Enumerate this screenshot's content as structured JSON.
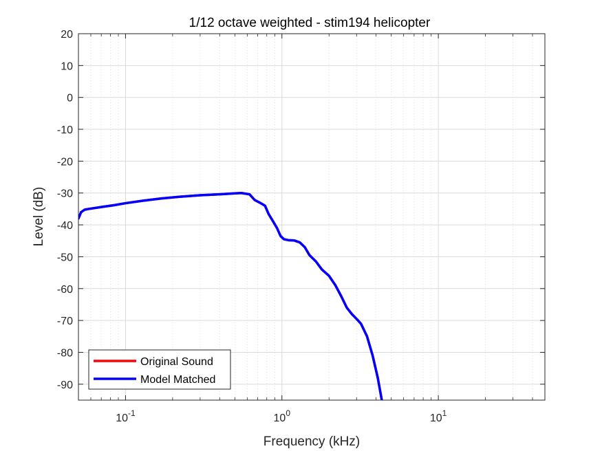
{
  "chart_data": {
    "type": "line",
    "title": "1/12 octave weighted - stim194 helicopter",
    "xlabel": "Frequency (kHz)",
    "ylabel": "Level (dB)",
    "xscale": "log",
    "xlim": [
      0.05,
      48
    ],
    "ylim": [
      -95,
      20
    ],
    "yticks": [
      20,
      10,
      0,
      -10,
      -20,
      -30,
      -40,
      -50,
      -60,
      -70,
      -80,
      -90
    ],
    "ytick_labels": [
      "20",
      "10",
      "0",
      "-10",
      "-20",
      "-30",
      "-40",
      "-50",
      "-60",
      "-70",
      "-80",
      "-90"
    ],
    "xticks": [
      {
        "value": 0.1,
        "base": "10",
        "exp": "-1"
      },
      {
        "value": 1,
        "base": "10",
        "exp": "0"
      },
      {
        "value": 10,
        "base": "10",
        "exp": "1"
      }
    ],
    "grid": true,
    "legend_position": "bottom-left",
    "series": [
      {
        "name": "Original Sound",
        "color": "#ff0000",
        "x": [
          0.05,
          0.052,
          0.055,
          0.06,
          0.07,
          0.085,
          0.1,
          0.13,
          0.17,
          0.22,
          0.3,
          0.4,
          0.5,
          0.55,
          0.62,
          0.67,
          0.72,
          0.78,
          0.82,
          0.88,
          0.93,
          0.98,
          1.03,
          1.1,
          1.2,
          1.3,
          1.4,
          1.5,
          1.65,
          1.8,
          2.0,
          2.2,
          2.4,
          2.6,
          2.8,
          3.0,
          3.2,
          3.5,
          3.8,
          4.1,
          4.35
        ],
        "y": [
          -38.0,
          -36.0,
          -35.2,
          -34.9,
          -34.4,
          -33.8,
          -33.2,
          -32.4,
          -31.7,
          -31.2,
          -30.7,
          -30.4,
          -30.1,
          -30.0,
          -30.4,
          -32.2,
          -33.0,
          -34.0,
          -36.5,
          -39.0,
          -41.0,
          -43.5,
          -44.5,
          -44.8,
          -44.9,
          -45.5,
          -47.0,
          -49.5,
          -51.5,
          -54.0,
          -56.0,
          -59.0,
          -62.5,
          -66.0,
          -68.0,
          -69.5,
          -71.0,
          -75.0,
          -81.0,
          -88.0,
          -95.0
        ]
      },
      {
        "name": "Model Matched",
        "color": "#0000ff",
        "x": [
          0.05,
          0.052,
          0.055,
          0.06,
          0.07,
          0.085,
          0.1,
          0.13,
          0.17,
          0.22,
          0.3,
          0.4,
          0.5,
          0.55,
          0.62,
          0.67,
          0.72,
          0.78,
          0.82,
          0.88,
          0.93,
          0.98,
          1.03,
          1.1,
          1.2,
          1.3,
          1.4,
          1.5,
          1.65,
          1.8,
          2.0,
          2.2,
          2.4,
          2.6,
          2.8,
          3.0,
          3.2,
          3.5,
          3.8,
          4.1,
          4.35
        ],
        "y": [
          -38.0,
          -36.0,
          -35.2,
          -34.9,
          -34.4,
          -33.8,
          -33.2,
          -32.4,
          -31.7,
          -31.2,
          -30.7,
          -30.4,
          -30.1,
          -30.0,
          -30.4,
          -32.2,
          -33.0,
          -34.0,
          -36.5,
          -39.0,
          -41.0,
          -43.5,
          -44.5,
          -44.8,
          -44.9,
          -45.5,
          -47.0,
          -49.5,
          -51.5,
          -54.0,
          -56.0,
          -59.0,
          -62.5,
          -66.0,
          -68.0,
          -69.5,
          -71.0,
          -75.0,
          -81.0,
          -88.0,
          -95.0
        ]
      }
    ]
  }
}
